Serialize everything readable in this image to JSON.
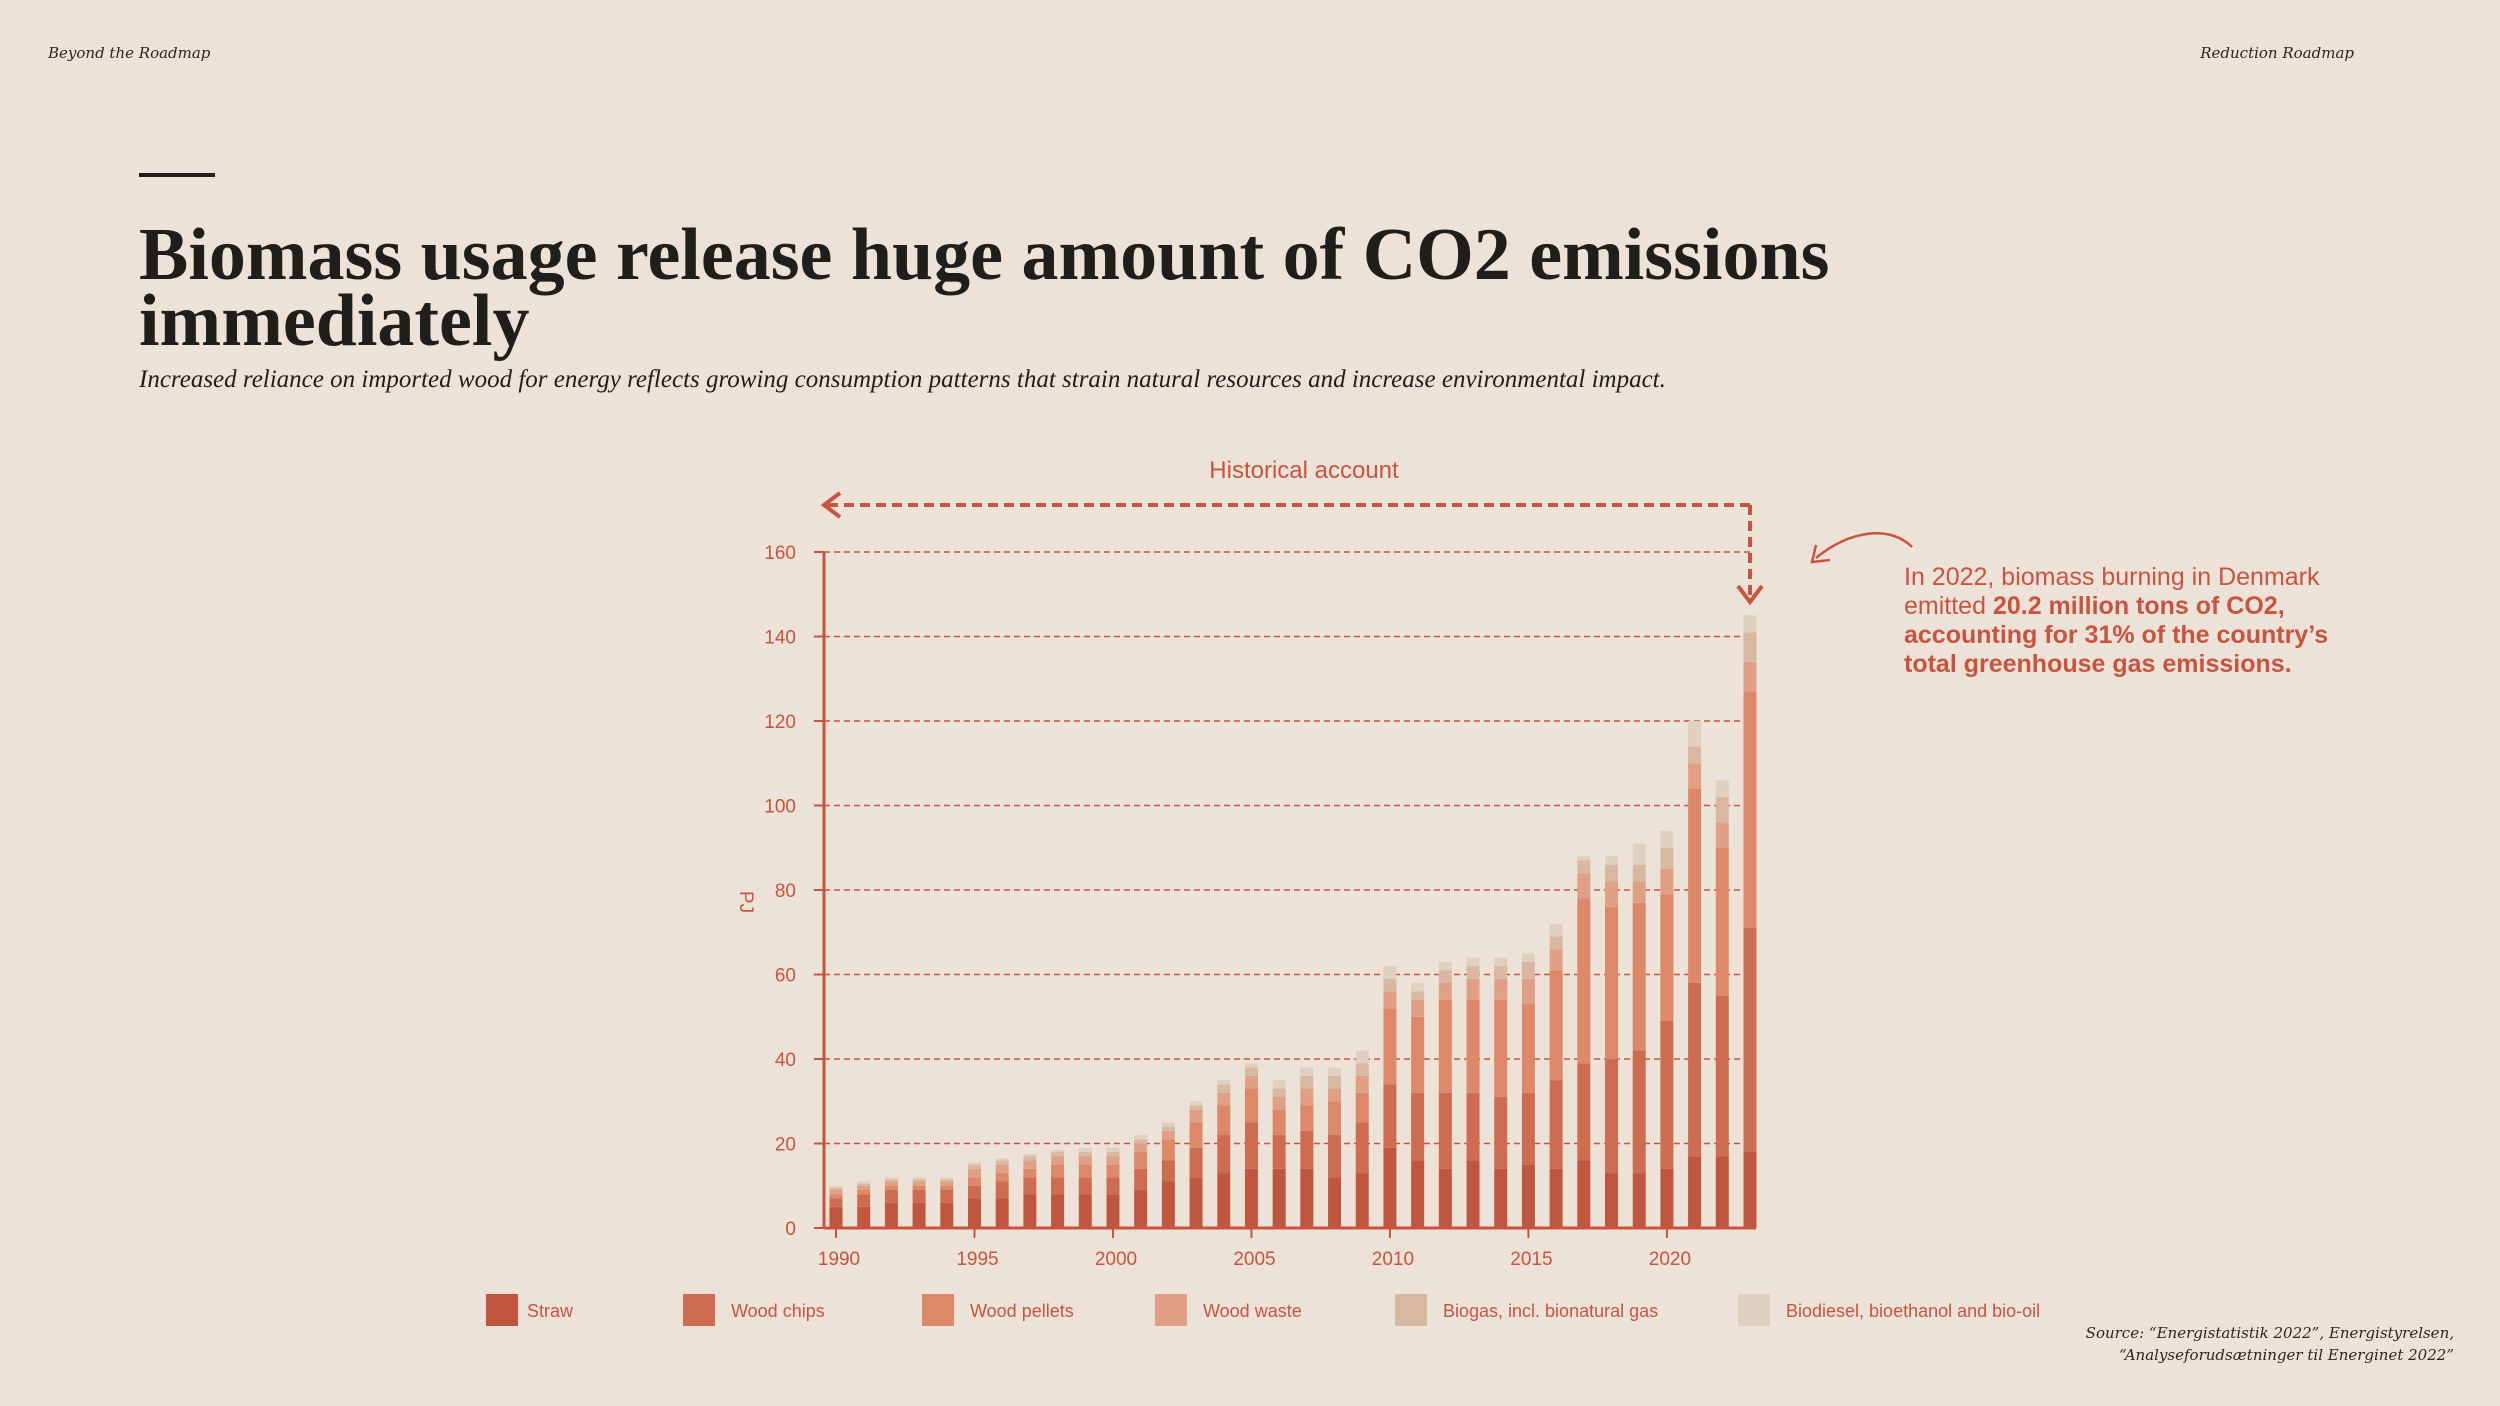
{
  "header": {
    "left": "Beyond the Roadmap",
    "right": "Reduction Roadmap"
  },
  "title": "Biomass usage release huge amount of CO2 emissions immediately",
  "subtitle": "Increased reliance on imported wood for energy reflects growing consumption patterns that strain natural resources and increase environmental impact.",
  "callout": {
    "pre": "In 2022, biomass burning in Denmark emitted ",
    "bold": "20.2 million tons of CO2, accounting for 31% of the country’s total greenhouse gas emissions."
  },
  "source": {
    "line1": "Source: “Energistatistik 2022”, Energistyrelsen,",
    "line2": "“Analyseforudsætninger til Energinet 2022”"
  },
  "colors": {
    "axis": "#c8543f",
    "grid": "#c8543f",
    "text": "#c8543f",
    "series": [
      "#c15640",
      "#cd6c50",
      "#dd8868",
      "#e0a085",
      "#d8b8a1",
      "#e0d0c0"
    ]
  },
  "chart_data": {
    "type": "bar",
    "stacked": true,
    "annotation": "Historical account",
    "ylabel": "PJ",
    "xlabel": "",
    "ylim": [
      0,
      160
    ],
    "yticks": [
      0,
      20,
      40,
      60,
      80,
      100,
      120,
      140,
      160
    ],
    "xticks": [
      "1990",
      "1995",
      "2000",
      "2005",
      "2010",
      "2015",
      "2020"
    ],
    "grid": true,
    "legend_position": "bottom",
    "categories": [
      "1990",
      "1991",
      "1992",
      "1993",
      "1994",
      "1995",
      "1996",
      "1997",
      "1998",
      "1999",
      "2000",
      "2001",
      "2002",
      "2003",
      "2004",
      "2005",
      "2006",
      "2007",
      "2008",
      "2009",
      "2010",
      "2011",
      "2012",
      "2013",
      "2014",
      "2015",
      "2016",
      "2017",
      "2018",
      "2019",
      "2020",
      "2021",
      "2022",
      "2023"
    ],
    "series": [
      {
        "name": "Straw",
        "values": [
          5,
          5,
          6,
          6,
          6,
          7,
          7,
          8,
          8,
          8,
          8,
          9,
          11,
          12,
          13,
          14,
          14,
          14,
          12,
          13,
          19,
          16,
          14,
          16,
          14,
          15,
          14,
          16,
          13,
          13,
          14,
          17,
          17,
          18
        ]
      },
      {
        "name": "Wood chips",
        "values": [
          2,
          3,
          3,
          3,
          3,
          3,
          4,
          4,
          4,
          4,
          4,
          5,
          5,
          7,
          9,
          11,
          8,
          9,
          10,
          12,
          15,
          16,
          18,
          16,
          17,
          17,
          21,
          23,
          27,
          29,
          35,
          41,
          38,
          53
        ]
      },
      {
        "name": "Wood pellets",
        "values": [
          1,
          1,
          1,
          1,
          1,
          2,
          2,
          2,
          3,
          3,
          3,
          4,
          5,
          6,
          7,
          8,
          6,
          6,
          8,
          7,
          18,
          18,
          22,
          22,
          23,
          21,
          26,
          39,
          36,
          35,
          30,
          46,
          35,
          56
        ]
      },
      {
        "name": "Wood waste",
        "values": [
          1,
          1,
          1,
          1,
          1,
          2,
          2,
          2,
          2,
          2,
          2,
          2,
          2,
          3,
          3,
          3,
          3,
          4,
          3,
          4,
          4,
          4,
          4,
          5,
          5,
          6,
          5,
          6,
          6,
          5,
          6,
          6,
          6,
          7
        ]
      },
      {
        "name": "Biogas, incl. bionatural gas",
        "values": [
          0.5,
          0.5,
          0.5,
          0.5,
          0.5,
          1,
          1,
          1,
          1,
          1,
          1,
          1,
          1,
          1,
          2,
          2,
          2,
          3,
          3,
          3,
          3,
          2,
          3,
          3,
          3,
          4,
          3,
          3,
          4,
          4,
          5,
          4,
          6,
          7
        ]
      },
      {
        "name": "Biodiesel, bioethanol and bio-oil",
        "values": [
          0.5,
          0.5,
          0.5,
          0.5,
          0.5,
          0.5,
          0.5,
          0.5,
          0.5,
          1,
          1,
          1,
          1,
          1,
          1,
          1,
          2,
          2,
          2,
          3,
          3,
          2,
          2,
          2,
          2,
          2,
          3,
          1,
          2,
          5,
          4,
          6,
          4,
          4
        ]
      }
    ]
  }
}
